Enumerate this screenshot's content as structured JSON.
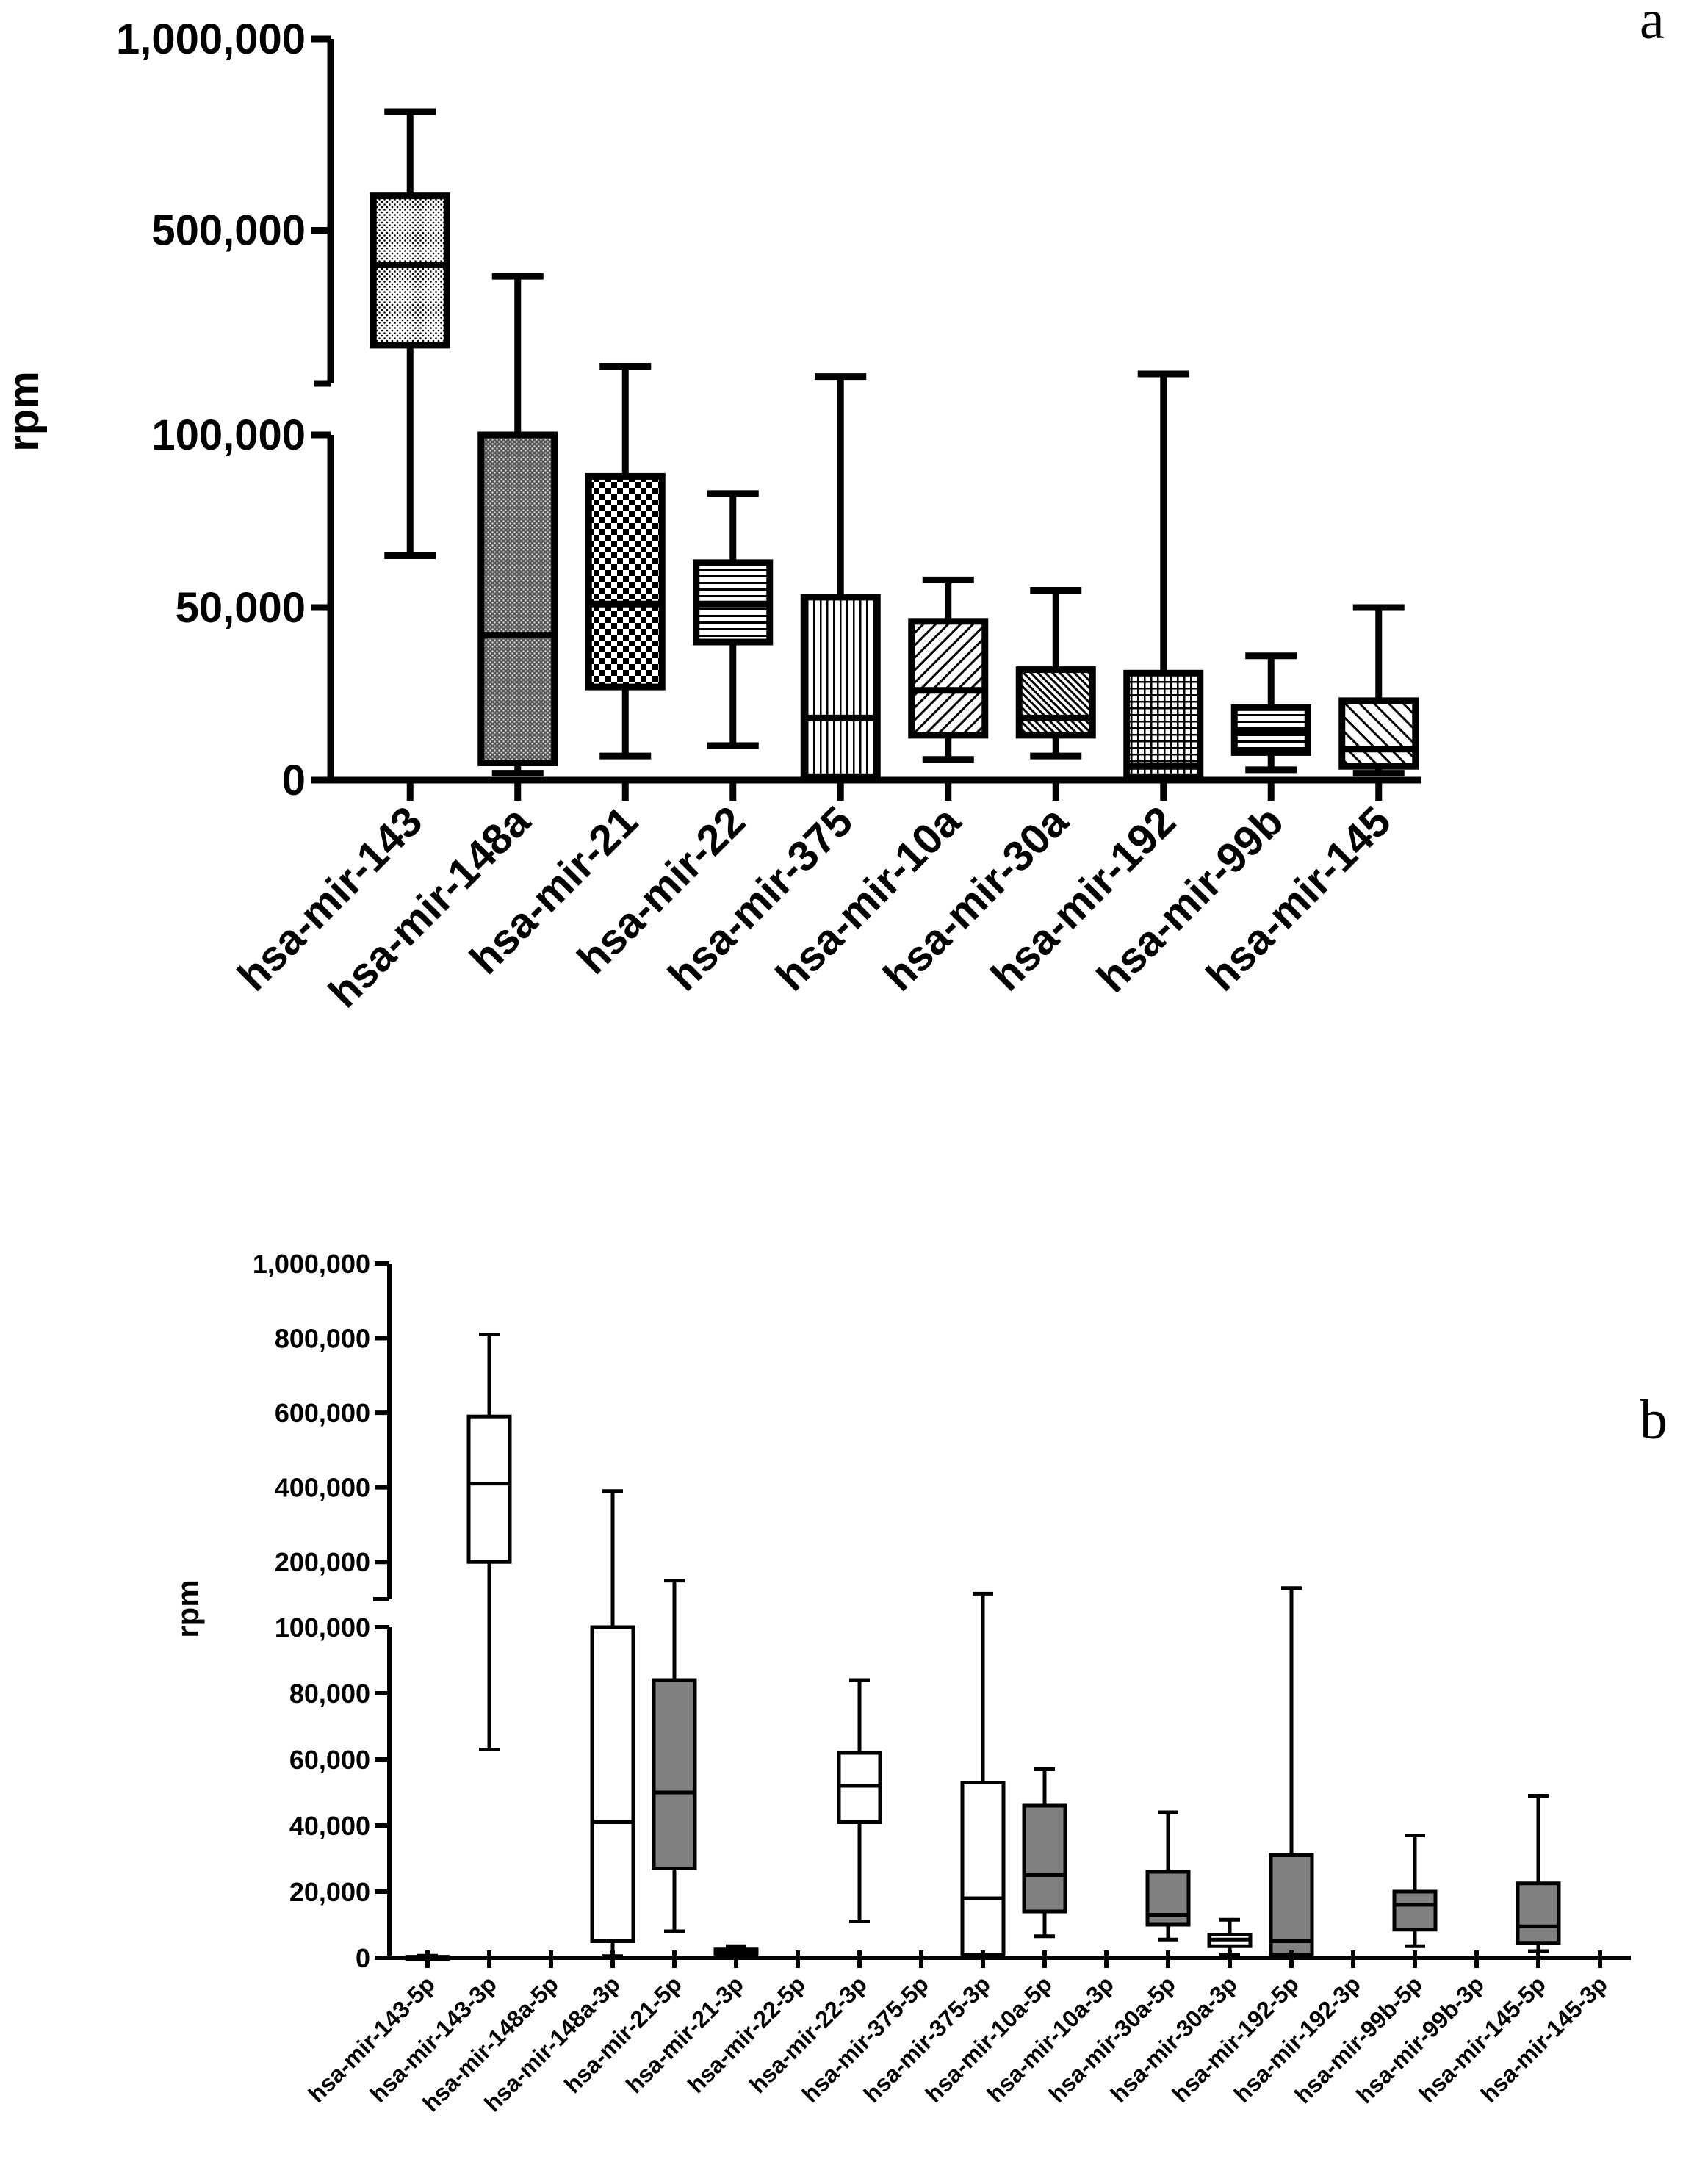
{
  "chart_data": [
    {
      "panel": "a",
      "type": "boxplot",
      "ylabel": "rpm",
      "axis_break": true,
      "upper_segment": {
        "ticks": [
          500000,
          1000000
        ],
        "tick_labels": [
          "500,000",
          "1,000,000"
        ],
        "range": [
          100000,
          1000000
        ]
      },
      "lower_segment": {
        "ticks": [
          0,
          50000,
          100000
        ],
        "tick_labels": [
          "0",
          "50,000",
          "100,000"
        ],
        "range": [
          0,
          100000
        ]
      },
      "categories": [
        "hsa-mir-143",
        "hsa-mir-148a",
        "hsa-mir-21",
        "hsa-mir-22",
        "hsa-mir-375",
        "hsa-mir-10a",
        "hsa-mir-30a",
        "hsa-mir-192",
        "hsa-mir-99b",
        "hsa-mir-145"
      ],
      "series": [
        {
          "name": "hsa-mir-143",
          "min": 65000,
          "q1": 200000,
          "median": 410000,
          "q3": 590000,
          "max": 810000,
          "fill": "dots"
        },
        {
          "name": "hsa-mir-148a",
          "min": 2000,
          "q1": 5000,
          "median": 42000,
          "q3": 100000,
          "max": 380000,
          "fill": "dense"
        },
        {
          "name": "hsa-mir-21",
          "min": 7000,
          "q1": 27000,
          "median": 51000,
          "q3": 88000,
          "max": 145000,
          "fill": "checker"
        },
        {
          "name": "hsa-mir-22",
          "min": 10000,
          "q1": 40000,
          "median": 51000,
          "q3": 63000,
          "max": 83000,
          "fill": "hlines"
        },
        {
          "name": "hsa-mir-375",
          "min": 0,
          "q1": 1000,
          "median": 18000,
          "q3": 53000,
          "max": 118000,
          "fill": "vlines"
        },
        {
          "name": "hsa-mir-10a",
          "min": 6000,
          "q1": 13000,
          "median": 26000,
          "q3": 46000,
          "max": 58000,
          "fill": "diag"
        },
        {
          "name": "hsa-mir-30a",
          "min": 7000,
          "q1": 13000,
          "median": 18000,
          "q3": 32000,
          "max": 55000,
          "fill": "diagdense"
        },
        {
          "name": "hsa-mir-192",
          "min": 0,
          "q1": 1000,
          "median": 4000,
          "q3": 31000,
          "max": 125000,
          "fill": "grid"
        },
        {
          "name": "hsa-mir-99b",
          "min": 3000,
          "q1": 8000,
          "median": 14000,
          "q3": 21000,
          "max": 36000,
          "fill": "hlines"
        },
        {
          "name": "hsa-mir-145",
          "min": 2000,
          "q1": 4000,
          "median": 9000,
          "q3": 23000,
          "max": 50000,
          "fill": "diagrev"
        }
      ]
    },
    {
      "panel": "b",
      "type": "boxplot",
      "ylabel": "rpm",
      "axis_break": true,
      "upper_segment": {
        "ticks": [
          200000,
          400000,
          600000,
          800000,
          1000000
        ],
        "tick_labels": [
          "200,000",
          "400,000",
          "600,000",
          "800,000",
          "1,000,000"
        ],
        "range": [
          100000,
          1000000
        ]
      },
      "lower_segment": {
        "ticks": [
          0,
          20000,
          40000,
          60000,
          80000,
          100000
        ],
        "tick_labels": [
          "0",
          "20,000",
          "40,000",
          "60,000",
          "80,000",
          "100,000"
        ],
        "range": [
          0,
          100000
        ]
      },
      "categories": [
        "hsa-mir-143-5p",
        "hsa-mir-143-3p",
        "hsa-mir-148a-5p",
        "hsa-mir-148a-3p",
        "hsa-mir-21-5p",
        "hsa-mir-21-3p",
        "hsa-mir-22-5p",
        "hsa-mir-22-3p",
        "hsa-mir-375-5p",
        "hsa-mir-375-3p",
        "hsa-mir-10a-5p",
        "hsa-mir-10a-3p",
        "hsa-mir-30a-5p",
        "hsa-mir-30a-3p",
        "hsa-mir-192-5p",
        "hsa-mir-192-3p",
        "hsa-mir-99b-5p",
        "hsa-mir-99b-3p",
        "hsa-mir-145-5p",
        "hsa-mir-145-3p"
      ],
      "series": [
        {
          "name": "hsa-mir-143-5p",
          "min": 0,
          "q1": 0,
          "median": 100,
          "q3": 300,
          "max": 600,
          "color": "white"
        },
        {
          "name": "hsa-mir-143-3p",
          "min": 63000,
          "q1": 200000,
          "median": 410000,
          "q3": 590000,
          "max": 810000,
          "color": "white"
        },
        {
          "name": "hsa-mir-148a-5p",
          "min": 0,
          "q1": 0,
          "median": 0,
          "q3": 0,
          "max": 0,
          "color": "white"
        },
        {
          "name": "hsa-mir-148a-3p",
          "min": 500,
          "q1": 5000,
          "median": 41000,
          "q3": 100000,
          "max": 390000,
          "color": "white"
        },
        {
          "name": "hsa-mir-21-5p",
          "min": 8000,
          "q1": 27000,
          "median": 50000,
          "q3": 84000,
          "max": 150000,
          "color": "gray"
        },
        {
          "name": "hsa-mir-21-3p",
          "min": 200,
          "q1": 800,
          "median": 1500,
          "q3": 2500,
          "max": 3500,
          "color": "gray"
        },
        {
          "name": "hsa-mir-22-5p",
          "min": 0,
          "q1": 0,
          "median": 0,
          "q3": 0,
          "max": 0,
          "color": "white"
        },
        {
          "name": "hsa-mir-22-3p",
          "min": 11000,
          "q1": 41000,
          "median": 52000,
          "q3": 62000,
          "max": 84000,
          "color": "white"
        },
        {
          "name": "hsa-mir-375-5p",
          "min": 0,
          "q1": 0,
          "median": 0,
          "q3": 0,
          "max": 0,
          "color": "white"
        },
        {
          "name": "hsa-mir-375-3p",
          "min": 0,
          "q1": 1000,
          "median": 18000,
          "q3": 53000,
          "max": 115000,
          "color": "white"
        },
        {
          "name": "hsa-mir-10a-5p",
          "min": 6500,
          "q1": 14000,
          "median": 25000,
          "q3": 46000,
          "max": 57000,
          "color": "gray"
        },
        {
          "name": "hsa-mir-10a-3p",
          "min": 0,
          "q1": 0,
          "median": 0,
          "q3": 0,
          "max": 0,
          "color": "gray"
        },
        {
          "name": "hsa-mir-30a-5p",
          "min": 5500,
          "q1": 10000,
          "median": 13000,
          "q3": 26000,
          "max": 44000,
          "color": "gray"
        },
        {
          "name": "hsa-mir-30a-3p",
          "min": 1000,
          "q1": 3500,
          "median": 5500,
          "q3": 7000,
          "max": 11500,
          "color": "white"
        },
        {
          "name": "hsa-mir-192-5p",
          "min": 0,
          "q1": 1000,
          "median": 5000,
          "q3": 31000,
          "max": 130000,
          "color": "gray"
        },
        {
          "name": "hsa-mir-192-3p",
          "min": 0,
          "q1": 0,
          "median": 0,
          "q3": 0,
          "max": 0,
          "color": "gray"
        },
        {
          "name": "hsa-mir-99b-5p",
          "min": 3500,
          "q1": 8500,
          "median": 16000,
          "q3": 20000,
          "max": 37000,
          "color": "gray"
        },
        {
          "name": "hsa-mir-99b-3p",
          "min": 0,
          "q1": 0,
          "median": 0,
          "q3": 0,
          "max": 0,
          "color": "gray"
        },
        {
          "name": "hsa-mir-145-5p",
          "min": 2000,
          "q1": 4500,
          "median": 9500,
          "q3": 22500,
          "max": 49000,
          "color": "gray"
        },
        {
          "name": "hsa-mir-145-3p",
          "min": 0,
          "q1": 0,
          "median": 0,
          "q3": 0,
          "max": 0,
          "color": "gray"
        }
      ]
    }
  ],
  "labels": {
    "panel_a": "a",
    "panel_b": "b"
  },
  "colors": {
    "ink": "#000000",
    "gray_box": "#808080",
    "white_box": "#ffffff"
  }
}
